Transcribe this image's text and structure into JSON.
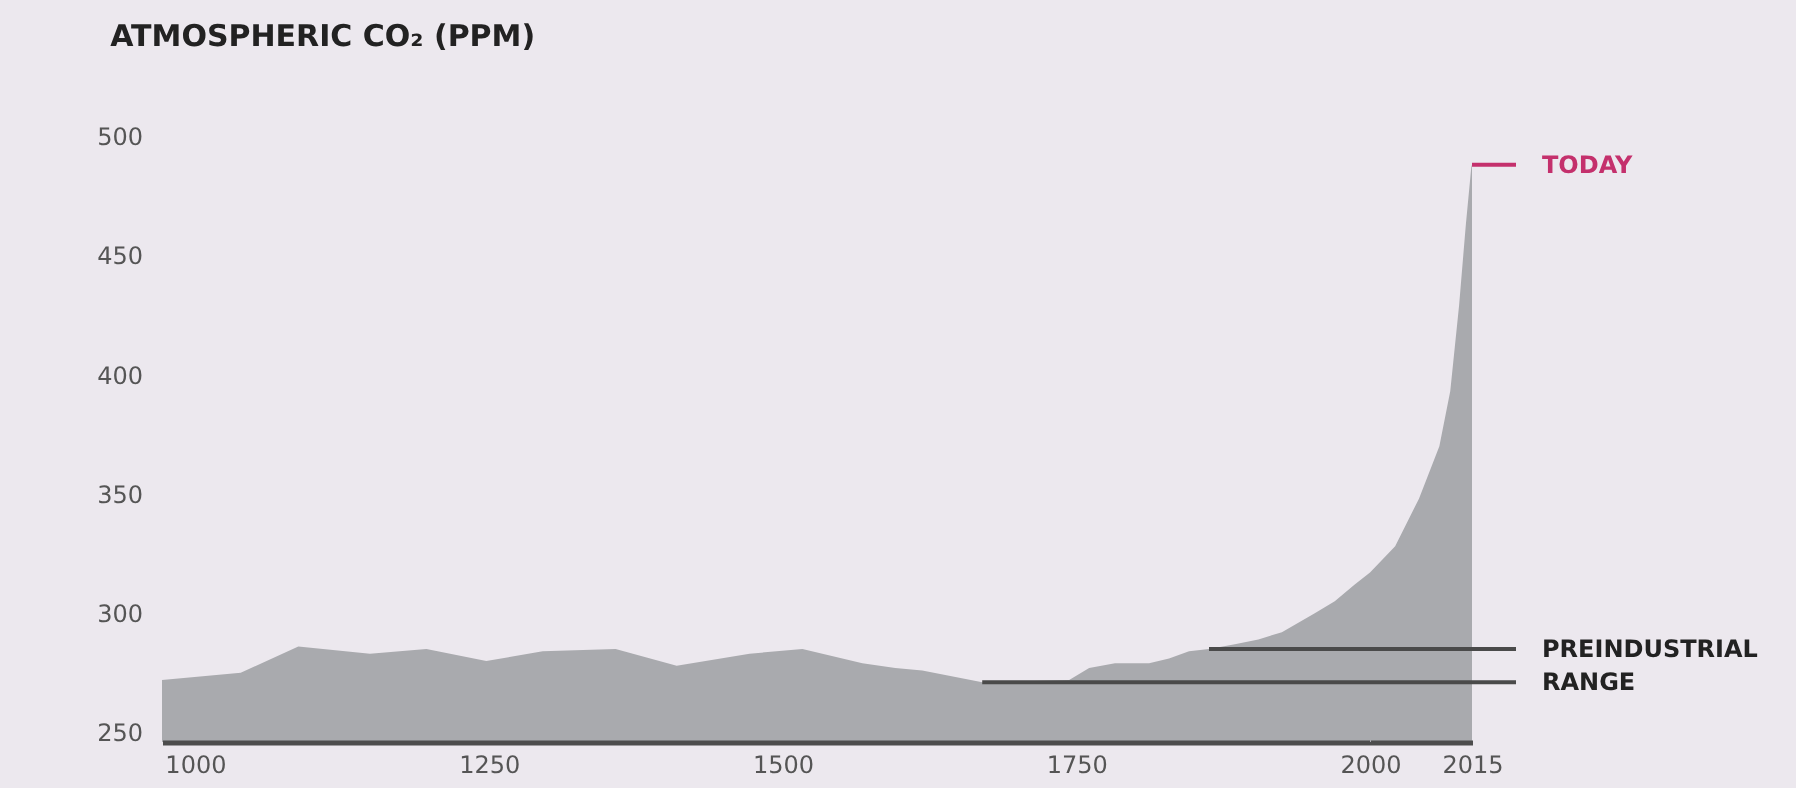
{
  "chart_data": [
    {
      "type": "area",
      "title": "ATMOSPHERIC CO₂ (PPM)",
      "x": [
        972,
        1039,
        1088,
        1149,
        1197,
        1248,
        1296,
        1358,
        1410,
        1472,
        1517,
        1568,
        1596,
        1619,
        1670,
        1744,
        1761,
        1783,
        1812,
        1829,
        1846,
        1863,
        1885,
        1905,
        1925,
        1953,
        1970,
        1987,
        2000
      ],
      "series": [
        {
          "color": "#a9aaae",
          "values": [
            272,
            275,
            286,
            283,
            285,
            280,
            284,
            285,
            278,
            283,
            285,
            279,
            277,
            276,
            271,
            272,
            277,
            279,
            279,
            281,
            284,
            285,
            287,
            289,
            292,
            300,
            305,
            312,
            317
          ]
        }
      ],
      "xlim": [
        972,
        2000
      ],
      "xticks": [
        1000,
        1250,
        1500,
        1750
      ],
      "ylim": [
        246,
        500
      ],
      "yticks": [
        250,
        300,
        350,
        400,
        450,
        500
      ],
      "ref_lines": [
        {
          "axis": "y",
          "value": 285,
          "color": "#4a4a4a"
        },
        {
          "axis": "y",
          "value": 271,
          "color": "#4a4a4a"
        }
      ]
    },
    {
      "type": "area",
      "x": [
        2000,
        2003.7,
        2007.2,
        2010.2,
        2011.8,
        2013.1,
        2014.1,
        2014.9,
        2015
      ],
      "series": [
        {
          "color": "#a9aaae",
          "values": [
            317,
            328,
            348,
            370,
            393,
            429,
            463,
            487,
            488
          ]
        }
      ],
      "xlim": [
        2000,
        2015
      ],
      "xticks": [
        2000,
        2015
      ],
      "ylim": [
        246,
        500
      ],
      "tick_labels": "x",
      "ref_lines": [
        {
          "axis": "y",
          "value": 285,
          "label": "PREINDUSTRIAL",
          "color": "#4a4a4a"
        },
        {
          "axis": "y",
          "value": 271,
          "label": "RANGE",
          "color": "#4a4a4a"
        }
      ],
      "annotations": [
        {
          "text": "TODAY",
          "x": 2015,
          "y": 488
        }
      ]
    }
  ]
}
